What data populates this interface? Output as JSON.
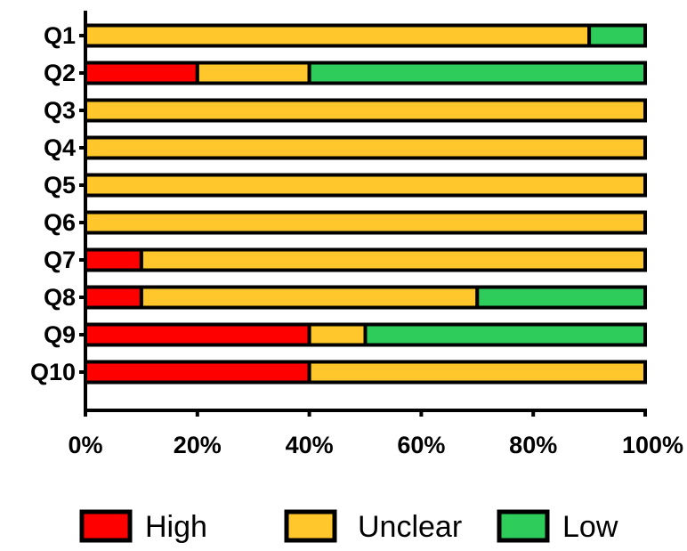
{
  "chart_data": {
    "type": "bar",
    "orientation": "horizontal",
    "stacked": true,
    "percent": true,
    "categories": [
      "Q1",
      "Q2",
      "Q3",
      "Q4",
      "Q5",
      "Q6",
      "Q7",
      "Q8",
      "Q9",
      "Q10"
    ],
    "series": [
      {
        "name": "High",
        "color": "#ff0000",
        "values": [
          0,
          20,
          0,
          0,
          0,
          0,
          10,
          10,
          40,
          40
        ]
      },
      {
        "name": "Unclear",
        "color": "#ffc72c",
        "values": [
          90,
          20,
          100,
          100,
          100,
          100,
          90,
          60,
          10,
          60
        ]
      },
      {
        "name": "Low",
        "color": "#2ecc5a",
        "values": [
          10,
          60,
          0,
          0,
          0,
          0,
          0,
          30,
          50,
          0
        ]
      }
    ],
    "xlim": [
      0,
      100
    ],
    "xticks": [
      "0%",
      "20%",
      "40%",
      "60%",
      "80%",
      "100%"
    ],
    "grid": false,
    "legend_position": "bottom"
  }
}
